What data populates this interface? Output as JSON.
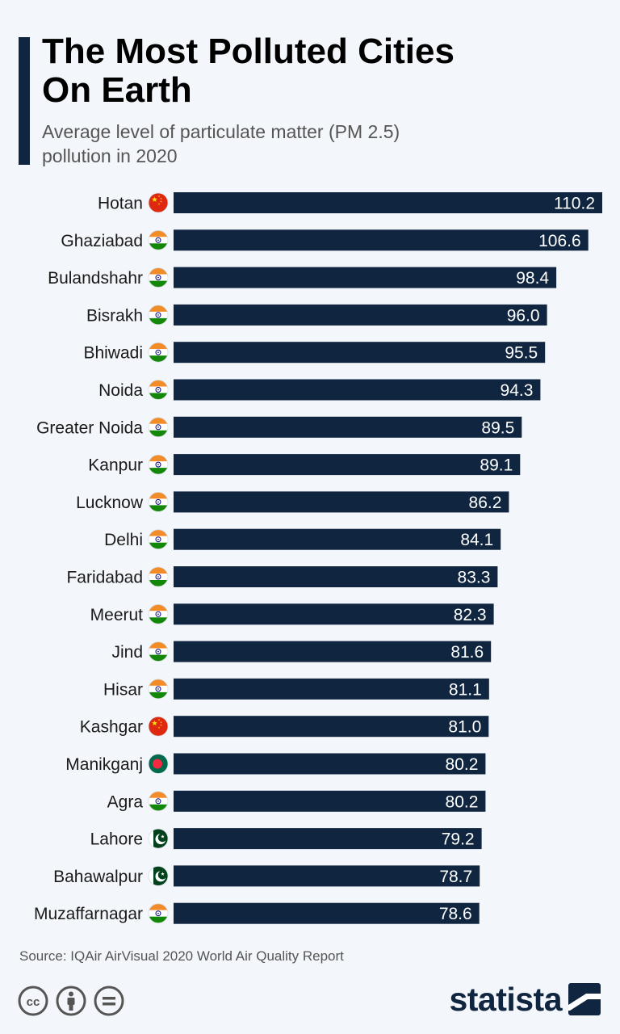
{
  "header": {
    "title": "The Most Polluted Cities On Earth",
    "subtitle": "Average level of particulate matter (PM 2.5) pollution in 2020"
  },
  "colors": {
    "bar": "#0f2540",
    "bar_label": "#ffffff",
    "china_flag": "#de2910",
    "india_saffron": "#f28c28",
    "india_green": "#138808",
    "bangladesh_green": "#006a4e",
    "bangladesh_red": "#f42a41",
    "pakistan_green": "#01411c"
  },
  "chart_data": {
    "type": "bar",
    "orientation": "horizontal",
    "categories": [
      "Hotan",
      "Ghaziabad",
      "Bulandshahr",
      "Bisrakh",
      "Bhiwadi",
      "Noida",
      "Greater Noida",
      "Kanpur",
      "Lucknow",
      "Delhi",
      "Faridabad",
      "Meerut",
      "Jind",
      "Hisar",
      "Kashgar",
      "Manikganj",
      "Agra",
      "Lahore",
      "Bahawalpur",
      "Muzaffarnagar"
    ],
    "flags": [
      "china-flag-icon",
      "india-flag-icon",
      "india-flag-icon",
      "india-flag-icon",
      "india-flag-icon",
      "india-flag-icon",
      "india-flag-icon",
      "india-flag-icon",
      "india-flag-icon",
      "india-flag-icon",
      "india-flag-icon",
      "india-flag-icon",
      "india-flag-icon",
      "india-flag-icon",
      "china-flag-icon",
      "bangladesh-flag-icon",
      "india-flag-icon",
      "pakistan-flag-icon",
      "pakistan-flag-icon",
      "india-flag-icon"
    ],
    "values": [
      110.2,
      106.6,
      98.4,
      96.0,
      95.5,
      94.3,
      89.5,
      89.1,
      86.2,
      84.1,
      83.3,
      82.3,
      81.6,
      81.1,
      81.0,
      80.2,
      80.2,
      79.2,
      78.7,
      78.6
    ],
    "value_labels": [
      "110.2",
      "106.6",
      "98.4",
      "96.0",
      "95.5",
      "94.3",
      "89.5",
      "89.1",
      "86.2",
      "84.1",
      "83.3",
      "82.3",
      "81.6",
      "81.1",
      "81.0",
      "80.2",
      "80.2",
      "79.2",
      "78.7",
      "78.6"
    ],
    "xlim": [
      0,
      110.2
    ],
    "grid": false,
    "legend": "none"
  },
  "footer": {
    "source": "Source: IQAir AirVisual 2020 World Air Quality Report",
    "license_icons": [
      "creative-commons-icon",
      "attribution-icon",
      "no-derivatives-icon"
    ],
    "brand": "statista"
  }
}
